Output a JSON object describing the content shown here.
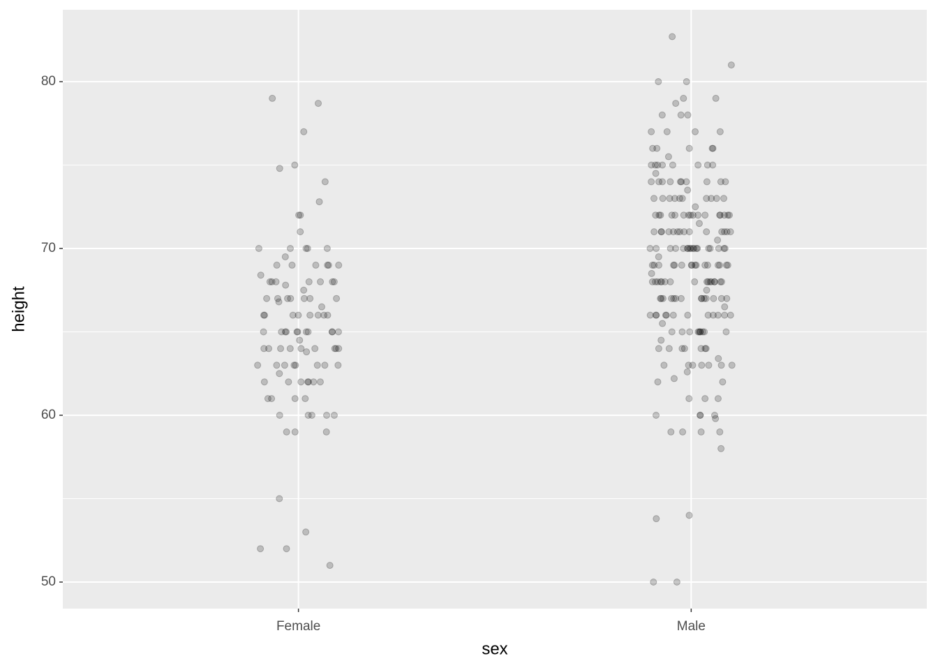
{
  "chart_data": {
    "type": "strip",
    "x_label": "sex",
    "y_label": "height",
    "categories": [
      "Female",
      "Male"
    ],
    "values": [
      [
        79,
        78.7,
        77,
        75,
        74.8,
        74,
        72.8,
        72,
        72,
        71,
        70,
        70,
        70,
        70,
        70,
        69.5,
        69,
        69,
        69,
        69,
        69,
        69,
        68.4,
        68,
        68,
        68,
        68,
        68,
        68,
        68,
        67.8,
        67.5,
        67,
        67,
        67,
        67,
        67,
        67,
        67,
        66.8,
        66.5,
        66,
        66,
        66,
        66,
        66,
        66,
        66,
        66,
        65,
        65,
        65,
        65,
        65,
        65,
        65,
        65,
        65,
        65,
        65,
        64.5,
        64,
        64,
        64,
        64,
        64,
        64,
        64,
        64,
        64,
        63.8,
        63,
        63,
        63,
        63,
        63,
        63,
        63,
        63,
        62.5,
        62,
        62,
        62,
        62,
        62,
        62,
        62,
        61,
        61,
        61,
        61,
        60,
        60,
        60,
        60,
        60,
        59,
        59,
        59,
        55,
        53,
        52,
        52,
        51
      ],
      [
        82.7,
        81,
        80,
        80,
        79,
        79,
        78.7,
        78,
        78,
        78,
        77,
        77,
        77,
        77,
        76,
        76,
        76,
        76,
        76,
        75.5,
        75,
        75,
        75,
        75,
        75,
        75,
        75,
        75,
        74.5,
        74,
        74,
        74,
        74,
        74,
        74,
        74,
        74,
        74,
        74,
        73.5,
        73,
        73,
        73,
        73,
        73,
        73,
        73,
        73,
        73,
        73,
        72.5,
        72,
        72,
        72,
        72,
        72,
        72,
        72,
        72,
        72,
        72,
        72,
        72,
        72,
        72,
        72,
        72,
        71.5,
        71,
        71,
        71,
        71,
        71,
        71,
        71,
        71,
        71,
        71,
        71,
        71,
        71,
        71,
        70.5,
        70,
        70,
        70,
        70,
        70,
        70,
        70,
        70,
        70,
        70,
        70,
        70,
        70,
        70,
        70,
        70,
        70,
        70,
        69.5,
        69,
        69,
        69,
        69,
        69,
        69,
        69,
        69,
        69,
        69,
        69,
        69,
        69,
        69,
        69,
        69,
        68.5,
        68,
        68,
        68,
        68,
        68,
        68,
        68,
        68,
        68,
        68,
        68,
        68,
        68,
        68,
        68,
        68,
        67.5,
        67,
        67,
        67,
        67,
        67,
        67,
        67,
        67,
        67,
        67,
        67,
        67,
        67,
        67,
        66.5,
        66,
        66,
        66,
        66,
        66,
        66,
        66,
        66,
        66,
        66,
        66,
        66,
        65.5,
        65,
        65,
        65,
        65,
        65,
        65,
        65,
        65,
        65,
        65,
        64.5,
        64,
        64,
        64,
        64,
        64,
        64,
        64,
        63.4,
        63,
        63,
        63,
        63,
        63,
        63,
        63,
        62.6,
        62.2,
        62,
        62,
        61,
        61,
        61,
        60,
        60,
        60,
        60,
        59.8,
        59,
        59,
        59,
        59,
        58,
        54,
        53.8,
        50,
        50
      ]
    ],
    "color": "#000000",
    "alpha": 0.2,
    "ylim": [
      48.41,
      84.31
    ],
    "yticks": [
      50,
      60,
      70,
      80
    ],
    "y_minor_ticks": [
      55,
      65,
      75
    ],
    "grid": true
  }
}
